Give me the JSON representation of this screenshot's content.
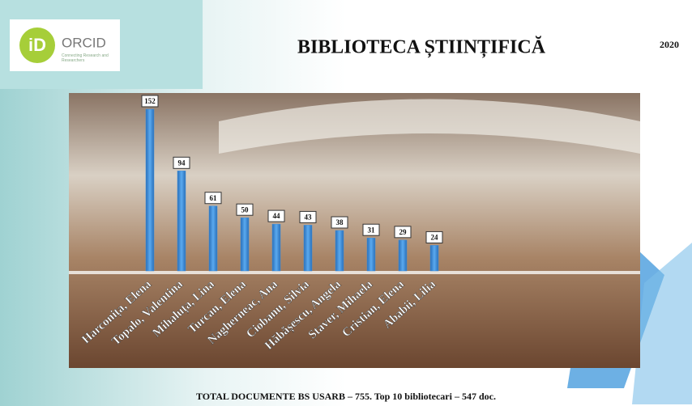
{
  "logo": {
    "name": "ORCID",
    "tagline": "Connecting Research and Researchers"
  },
  "year": "2020",
  "footer": "TOTAL DOCUMENTE BS USARB – 755. Top 10 bibliotecari – 547 doc.",
  "chart_data": {
    "type": "bar",
    "title": "BIBLIOTECA ȘTIINȚIFICĂ",
    "categories": [
      "Harconița, Elena",
      "Topalo, Valentina",
      "Mihaluța, Lina",
      "Turcan, Elena",
      "Naghernеac, Ana",
      "Ciobanu, Silvia",
      "Hăbășescu, Angela",
      "Staver, Mihaela",
      "Cristian, Elena",
      "Ababii, Lilia"
    ],
    "values": [
      152,
      94,
      61,
      50,
      44,
      43,
      38,
      31,
      29,
      24
    ],
    "color": "#3f8fdc"
  }
}
